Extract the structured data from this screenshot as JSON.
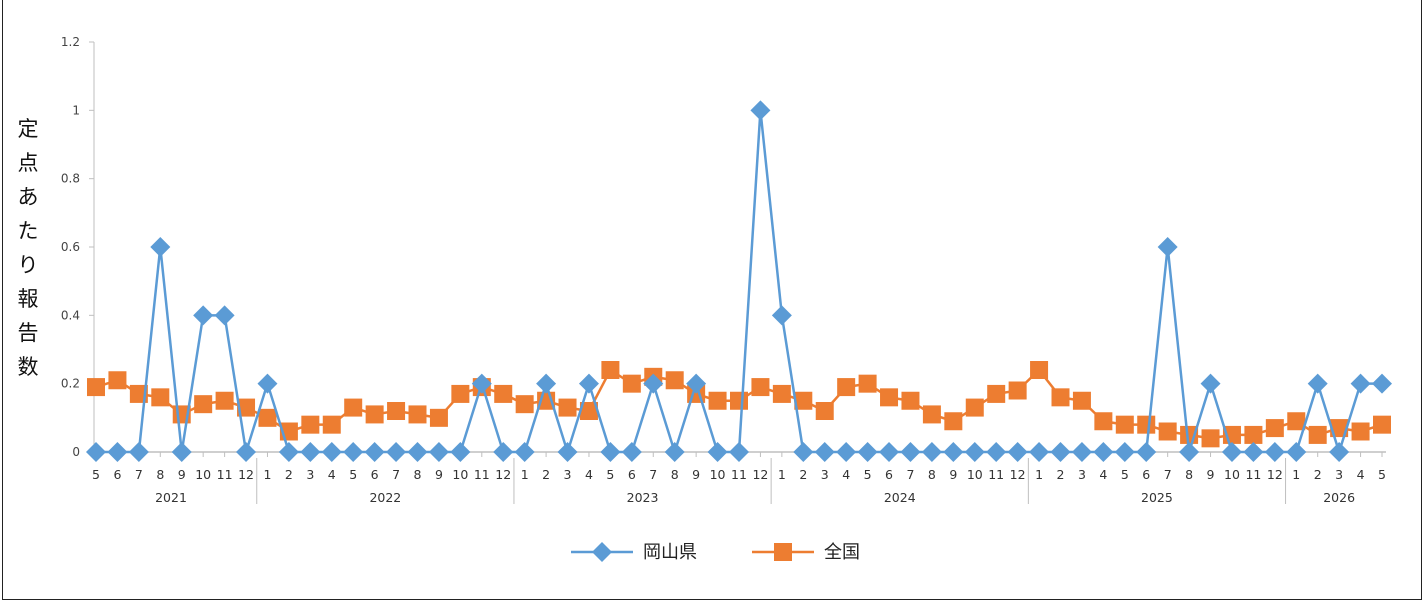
{
  "chart_data": {
    "type": "line",
    "title": "",
    "ylabel": "定点あたり報告数",
    "xlabel": "",
    "ylim": [
      0,
      1.2
    ],
    "yticks": [
      "0",
      "0.2",
      "0.4",
      "0.6",
      "0.8",
      "1",
      "1.2"
    ],
    "x": [
      "2021-05",
      "2021-06",
      "2021-07",
      "2021-08",
      "2021-09",
      "2021-10",
      "2021-11",
      "2021-12",
      "2022-01",
      "2022-02",
      "2022-03",
      "2022-04",
      "2022-05",
      "2022-06",
      "2022-07",
      "2022-08",
      "2022-09",
      "2022-10",
      "2022-11",
      "2022-12",
      "2023-01",
      "2023-02",
      "2023-03",
      "2023-04",
      "2023-05",
      "2023-06",
      "2023-07",
      "2023-08",
      "2023-09",
      "2023-10",
      "2023-11",
      "2023-12",
      "2024-01",
      "2024-02",
      "2024-03",
      "2024-04",
      "2024-05",
      "2024-06",
      "2024-07",
      "2024-08",
      "2024-09",
      "2024-10",
      "2024-11",
      "2024-12",
      "2025-01",
      "2025-02",
      "2025-03",
      "2025-04",
      "2025-05",
      "2025-06",
      "2025-07",
      "2025-08",
      "2025-09",
      "2025-10",
      "2025-11",
      "2025-12",
      "2026-01",
      "2026-02",
      "2026-03",
      "2026-04",
      "2026-05"
    ],
    "month_labels": [
      "5",
      "6",
      "7",
      "8",
      "9",
      "10",
      "11",
      "12",
      "1",
      "2",
      "3",
      "4",
      "5",
      "6",
      "7",
      "8",
      "9",
      "10",
      "11",
      "12",
      "1",
      "2",
      "3",
      "4",
      "5",
      "6",
      "7",
      "8",
      "9",
      "10",
      "11",
      "12",
      "1",
      "2",
      "3",
      "4",
      "5",
      "6",
      "7",
      "8",
      "9",
      "10",
      "11",
      "12",
      "1",
      "2",
      "3",
      "4",
      "5",
      "6",
      "7",
      "8",
      "9",
      "10",
      "11",
      "12",
      "1",
      "2",
      "3",
      "4",
      "5"
    ],
    "year_labels": [
      "2021",
      "2022",
      "2023",
      "2024",
      "2025",
      "2026"
    ],
    "series": [
      {
        "name": "岡山県",
        "color": "#5B9BD5",
        "marker": "diamond",
        "values": [
          0,
          0,
          0,
          0.6,
          0,
          0.4,
          0.4,
          0,
          0.2,
          0,
          0,
          0,
          0,
          0,
          0,
          0,
          0,
          0,
          0.2,
          0,
          0,
          0.2,
          0,
          0.2,
          0,
          0,
          0.2,
          0,
          0.2,
          0,
          0,
          1.0,
          0.4,
          0,
          0,
          0,
          0,
          0,
          0,
          0,
          0,
          0,
          0,
          0,
          0,
          0,
          0,
          0,
          0,
          0,
          0.6,
          0,
          0.2,
          0,
          0,
          0,
          0,
          0.2,
          0,
          0.2,
          0.2
        ]
      },
      {
        "name": "全国",
        "color": "#ED7D31",
        "marker": "square",
        "values": [
          0.19,
          0.21,
          0.17,
          0.16,
          0.11,
          0.14,
          0.15,
          0.13,
          0.1,
          0.06,
          0.08,
          0.08,
          0.13,
          0.11,
          0.12,
          0.11,
          0.1,
          0.17,
          0.19,
          0.17,
          0.14,
          0.15,
          0.13,
          0.12,
          0.24,
          0.2,
          0.22,
          0.21,
          0.17,
          0.15,
          0.15,
          0.19,
          0.17,
          0.15,
          0.12,
          0.19,
          0.2,
          0.16,
          0.15,
          0.11,
          0.09,
          0.13,
          0.17,
          0.18,
          0.24,
          0.16,
          0.15,
          0.09,
          0.08,
          0.08,
          0.06,
          0.05,
          0.04,
          0.05,
          0.05,
          0.07,
          0.09,
          0.05,
          0.07,
          0.06,
          0.08
        ]
      }
    ],
    "grid": false,
    "legend_position": "bottom"
  }
}
